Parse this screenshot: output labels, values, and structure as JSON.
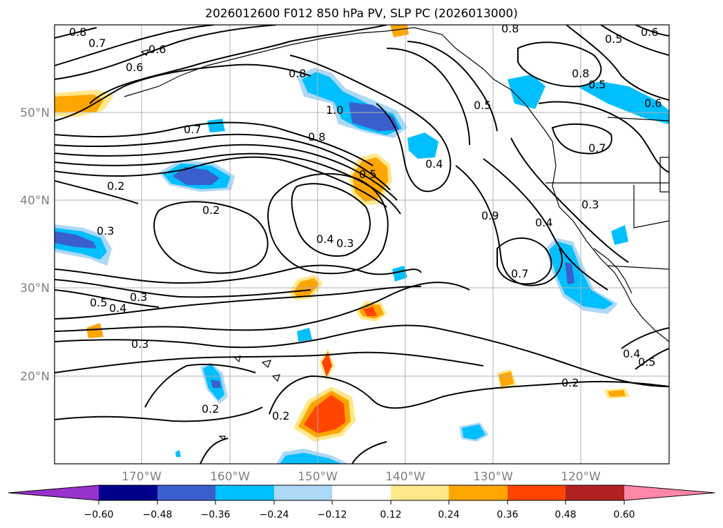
{
  "title": "2026012600 F012 850 hPa PV, SLP PC (2026013000)",
  "lat_labels": [
    "50°N",
    "40°N",
    "30°N",
    "20°N"
  ],
  "lon_labels": [
    "170°W",
    "160°W",
    "150°W",
    "140°W",
    "130°W",
    "120°W"
  ],
  "colorbar": {
    "ticks": [
      "−0.60",
      "−0.48",
      "−0.36",
      "−0.24",
      "−0.12",
      "0.12",
      "0.24",
      "0.36",
      "0.48",
      "0.60"
    ],
    "colors": [
      "#9932cc",
      "#00008b",
      "#3a5fcd",
      "#00bfff",
      "#add8f6",
      "#ffffff",
      "#ffe88a",
      "#ffa500",
      "#ff4500",
      "#b22222",
      "#ff88aa"
    ]
  },
  "contour_labels": [
    {
      "text": "0.8",
      "name": "label-08-nw"
    },
    {
      "text": "0.7",
      "name": "label-07-nw"
    },
    {
      "text": "0.6",
      "name": "label-06-north"
    },
    {
      "text": "0.6",
      "name": "label-06-west"
    },
    {
      "text": "0.8",
      "name": "label-08-gulf"
    },
    {
      "text": "1.0",
      "name": "label-10"
    },
    {
      "text": "0.7",
      "name": "label-07-center"
    },
    {
      "text": "0.8",
      "name": "label-08-center"
    },
    {
      "text": "0.5",
      "name": "label-05-jet"
    },
    {
      "text": "0.4",
      "name": "label-04-ne"
    },
    {
      "text": "0.5",
      "name": "label-05-ne"
    },
    {
      "text": "0.8",
      "name": "label-08-ne"
    },
    {
      "text": "0.5",
      "name": "label-05-topright"
    },
    {
      "text": "0.6",
      "name": "label-06-topright"
    },
    {
      "text": "0.8",
      "name": "label-08-topright"
    },
    {
      "text": "0.5",
      "name": "label-05-bc"
    },
    {
      "text": "0.6",
      "name": "label-06-east"
    },
    {
      "text": "0.7",
      "name": "label-07-east"
    },
    {
      "text": "0.2",
      "name": "label-02-west"
    },
    {
      "text": "0.2",
      "name": "label-02-center"
    },
    {
      "text": "0.4",
      "name": "label-04-center"
    },
    {
      "text": "0.3",
      "name": "label-03-center"
    },
    {
      "text": "0.3",
      "name": "label-03-west"
    },
    {
      "text": "0.3",
      "name": "label-03-sw"
    },
    {
      "text": "0.5",
      "name": "label-05-sw"
    },
    {
      "text": "0.4",
      "name": "label-04-sw"
    },
    {
      "text": "0.3",
      "name": "label-03-south"
    },
    {
      "text": "0.9",
      "name": "label-09"
    },
    {
      "text": "0.4",
      "name": "label-04-cal"
    },
    {
      "text": "0.7",
      "name": "label-07-low"
    },
    {
      "text": "0.3",
      "name": "label-03-cal"
    },
    {
      "text": "0.2",
      "name": "label-02-se"
    },
    {
      "text": "0.2",
      "name": "label-02-south"
    },
    {
      "text": "0.2",
      "name": "label-02-southwest"
    },
    {
      "text": "0.4",
      "name": "label-04-mex"
    },
    {
      "text": "0.5",
      "name": "label-05-mex"
    }
  ]
}
